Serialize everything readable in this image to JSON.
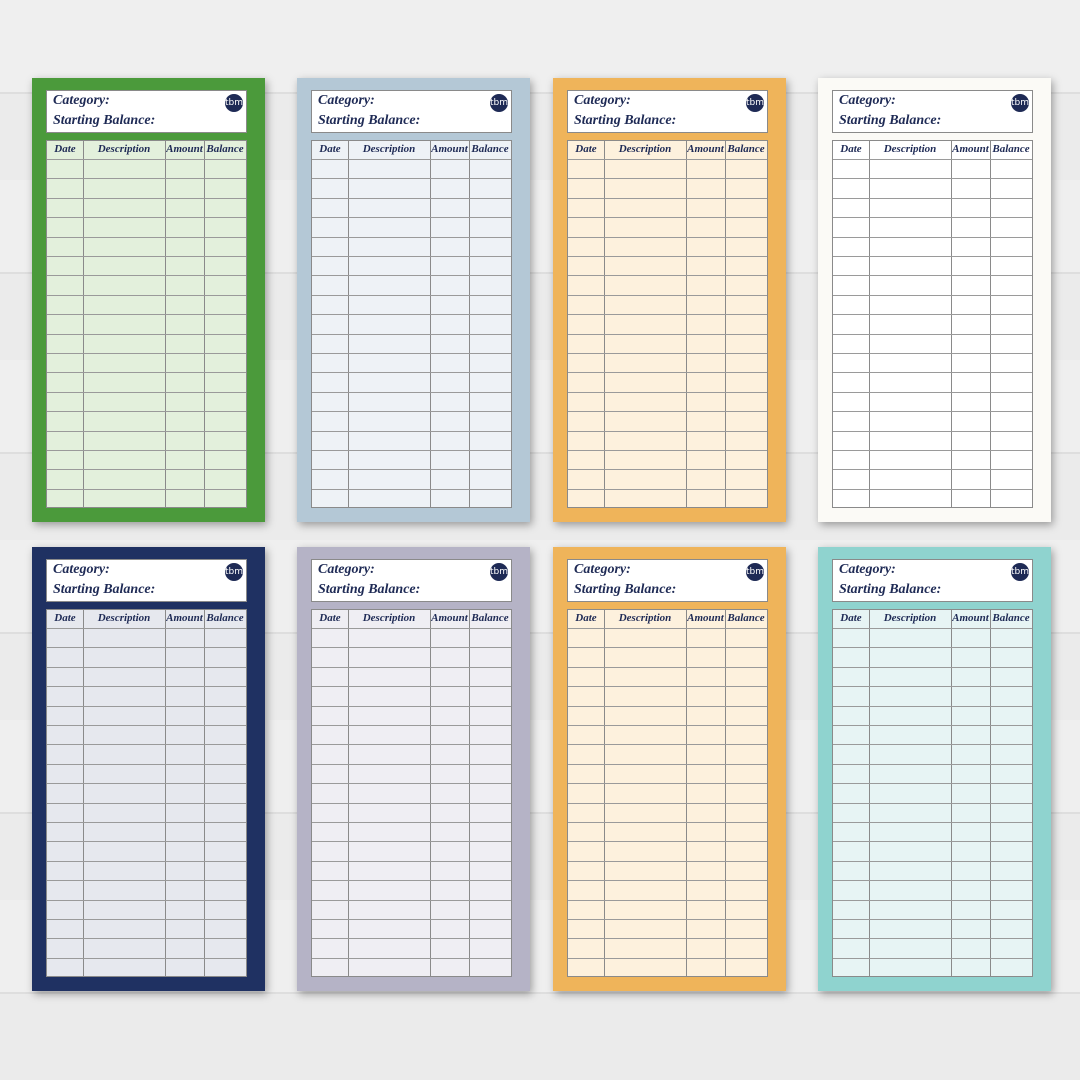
{
  "cards": [
    {
      "category_label": "Category:",
      "balance_label": "Starting Balance:",
      "logo": "tbm",
      "columns": [
        "Date",
        "Description",
        "Amount",
        "Balance"
      ],
      "border_color": "#4b9a3b",
      "fill_color": "#e3f0dc"
    },
    {
      "category_label": "Category:",
      "balance_label": "Starting Balance:",
      "logo": "tbm",
      "columns": [
        "Date",
        "Description",
        "Amount",
        "Balance"
      ],
      "border_color": "#b4c8d6",
      "fill_color": "#eef2f6"
    },
    {
      "category_label": "Category:",
      "balance_label": "Starting Balance:",
      "logo": "tbm",
      "columns": [
        "Date",
        "Description",
        "Amount",
        "Balance"
      ],
      "border_color": "#efb45a",
      "fill_color": "#fdf1dd"
    },
    {
      "category_label": "Category:",
      "balance_label": "Starting Balance:",
      "logo": "tbm",
      "columns": [
        "Date",
        "Description",
        "Amount",
        "Balance"
      ],
      "border_color": "#fbfaf6",
      "fill_color": "#ffffff"
    },
    {
      "category_label": "Category:",
      "balance_label": "Starting Balance:",
      "logo": "tbm",
      "columns": [
        "Date",
        "Description",
        "Amount",
        "Balance"
      ],
      "border_color": "#1f3162",
      "fill_color": "#e6e8ee"
    },
    {
      "category_label": "Category:",
      "balance_label": "Starting Balance:",
      "logo": "tbm",
      "columns": [
        "Date",
        "Description",
        "Amount",
        "Balance"
      ],
      "border_color": "#b5b3c6",
      "fill_color": "#efeef3"
    },
    {
      "category_label": "Category:",
      "balance_label": "Starting Balance:",
      "logo": "tbm",
      "columns": [
        "Date",
        "Description",
        "Amount",
        "Balance"
      ],
      "border_color": "#efb45a",
      "fill_color": "#fdf1dd"
    },
    {
      "category_label": "Category:",
      "balance_label": "Starting Balance:",
      "logo": "tbm",
      "columns": [
        "Date",
        "Description",
        "Amount",
        "Balance"
      ],
      "border_color": "#8fd3cf",
      "fill_color": "#e7f4f4"
    }
  ]
}
